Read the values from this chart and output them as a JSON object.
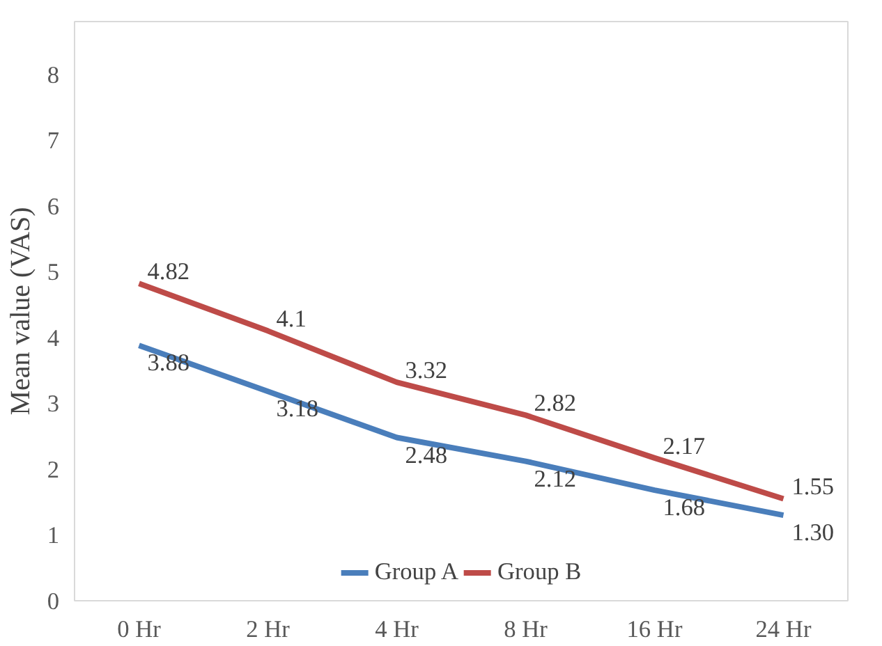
{
  "chart_data": {
    "type": "line",
    "ylabel": "Mean value (VAS)",
    "categories": [
      "0 Hr",
      "2 Hr",
      "4 Hr",
      "8 Hr",
      "16 Hr",
      "24 Hr"
    ],
    "series": [
      {
        "name": "Group A",
        "color": "#4a7ebb",
        "values": [
          3.88,
          3.18,
          2.48,
          2.12,
          1.68,
          1.3
        ],
        "value_labels": [
          "3.88",
          "3.18",
          "2.48",
          "2.12",
          "1.68",
          "1.30"
        ]
      },
      {
        "name": "Group B",
        "color": "#be4b48",
        "values": [
          4.82,
          4.1,
          3.32,
          2.82,
          2.17,
          1.55
        ],
        "value_labels": [
          "4.82",
          "4.1",
          "3.32",
          "2.82",
          "2.17",
          "1.55"
        ]
      }
    ],
    "ylim": [
      0,
      8.8
    ],
    "yticks": [
      0,
      1,
      2,
      3,
      4,
      5,
      6,
      7,
      8
    ],
    "grid": false,
    "legend": "bottom",
    "marker": "none",
    "line_style": "solid"
  }
}
